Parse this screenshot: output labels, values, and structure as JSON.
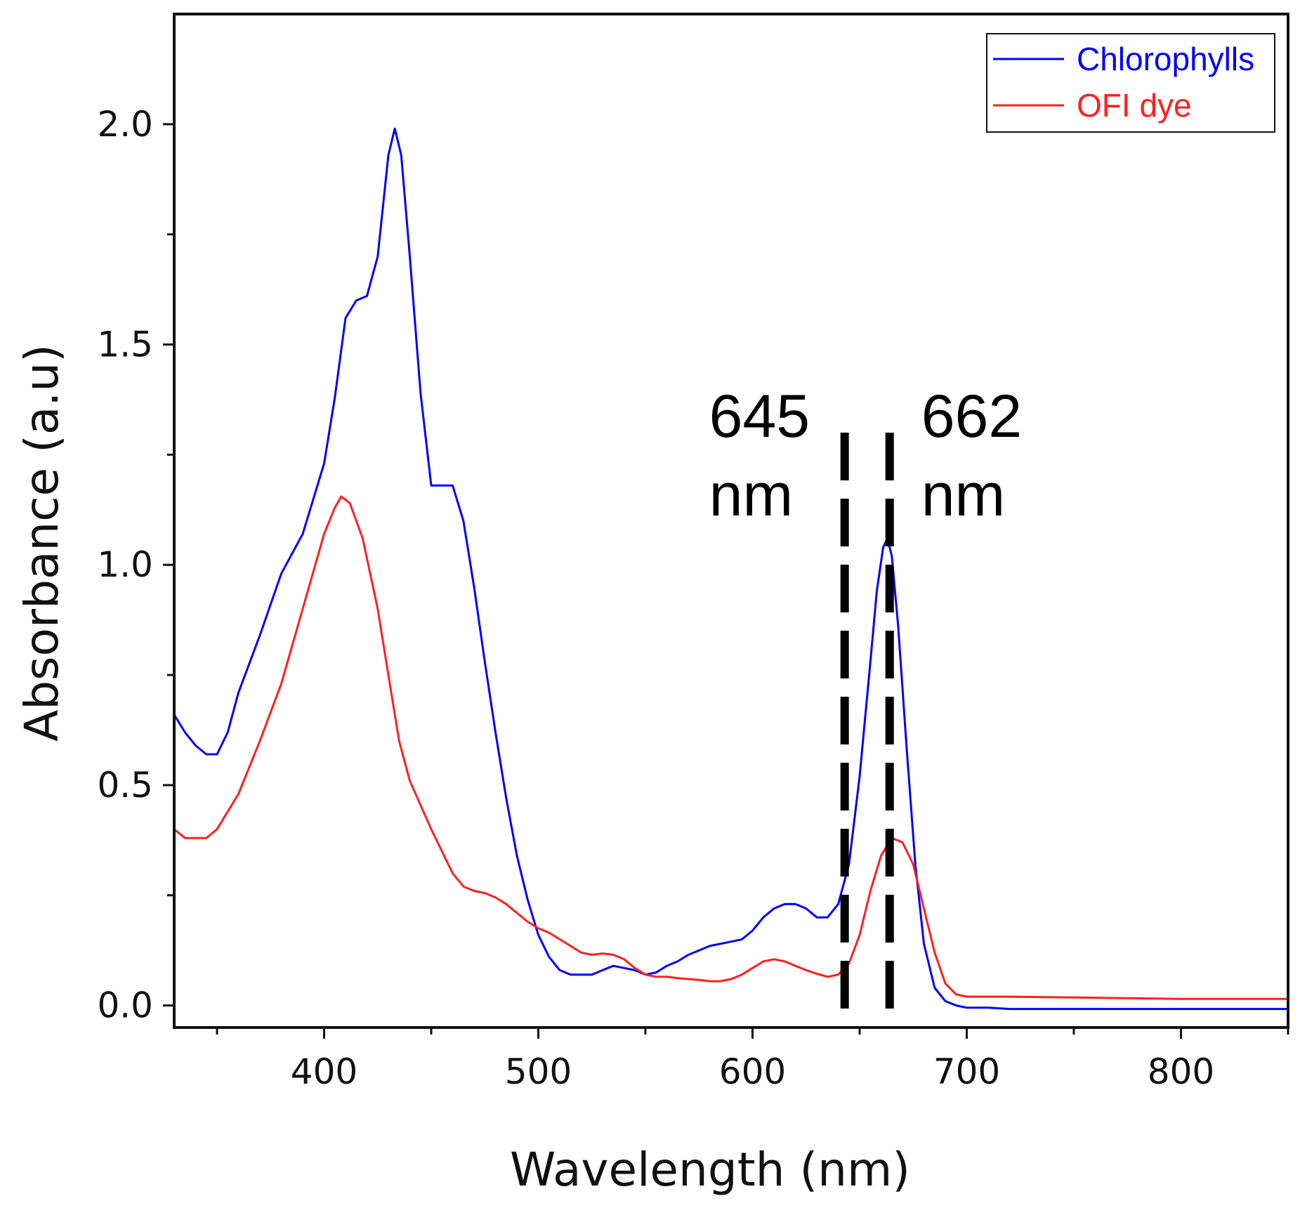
{
  "chart_data": {
    "type": "line",
    "title": "",
    "xlabel": "Wavelength (nm)",
    "ylabel": "Absorbance (a.u)",
    "xlim": [
      330,
      850
    ],
    "ylim": [
      -0.05,
      2.25
    ],
    "xticks": [
      400,
      500,
      600,
      700,
      800
    ],
    "xtick_labels": [
      "400",
      "500",
      "600",
      "700",
      "800"
    ],
    "yticks": [
      0.0,
      0.5,
      1.0,
      1.5,
      2.0
    ],
    "ytick_labels": [
      "0.0",
      "0.5",
      "1.0",
      "1.5",
      "2.0"
    ],
    "x_minor_ticks": [
      350,
      450,
      550,
      650,
      750,
      850
    ],
    "y_minor_ticks": [
      0.25,
      0.75,
      1.25,
      1.75
    ],
    "grid": false,
    "legend_position": "top-right",
    "series": [
      {
        "name": "Chlorophylls",
        "color": "#0000ff",
        "x": [
          330,
          335,
          340,
          345,
          350,
          355,
          360,
          370,
          380,
          390,
          400,
          405,
          410,
          415,
          420,
          425,
          430,
          433,
          436,
          440,
          445,
          450,
          455,
          460,
          465,
          470,
          475,
          480,
          485,
          490,
          495,
          500,
          505,
          510,
          515,
          520,
          525,
          530,
          535,
          540,
          545,
          550,
          555,
          560,
          565,
          570,
          575,
          580,
          585,
          590,
          595,
          600,
          605,
          610,
          615,
          620,
          625,
          630,
          635,
          640,
          645,
          650,
          655,
          658,
          661,
          663,
          665,
          668,
          672,
          676,
          680,
          685,
          690,
          695,
          700,
          710,
          720,
          750,
          800,
          850
        ],
        "y": [
          0.66,
          0.62,
          0.59,
          0.57,
          0.57,
          0.62,
          0.71,
          0.84,
          0.98,
          1.07,
          1.23,
          1.38,
          1.56,
          1.6,
          1.61,
          1.7,
          1.93,
          1.99,
          1.93,
          1.7,
          1.39,
          1.18,
          1.18,
          1.18,
          1.1,
          0.95,
          0.78,
          0.62,
          0.47,
          0.34,
          0.24,
          0.16,
          0.11,
          0.08,
          0.07,
          0.07,
          0.07,
          0.08,
          0.09,
          0.085,
          0.08,
          0.07,
          0.075,
          0.09,
          0.1,
          0.115,
          0.125,
          0.135,
          0.14,
          0.145,
          0.15,
          0.17,
          0.2,
          0.22,
          0.23,
          0.23,
          0.22,
          0.2,
          0.2,
          0.23,
          0.32,
          0.52,
          0.78,
          0.94,
          1.04,
          1.06,
          1.02,
          0.86,
          0.58,
          0.32,
          0.14,
          0.04,
          0.01,
          0.0,
          -0.005,
          -0.005,
          -0.008,
          -0.008,
          -0.008,
          -0.008
        ]
      },
      {
        "name": "OFI dye",
        "color": "#ff2020",
        "x": [
          330,
          335,
          340,
          345,
          350,
          360,
          370,
          380,
          390,
          400,
          405,
          408,
          412,
          418,
          425,
          430,
          435,
          440,
          450,
          460,
          465,
          470,
          475,
          480,
          485,
          490,
          495,
          500,
          505,
          510,
          515,
          520,
          525,
          530,
          535,
          540,
          545,
          550,
          555,
          560,
          565,
          570,
          575,
          580,
          585,
          590,
          595,
          600,
          605,
          610,
          615,
          620,
          625,
          630,
          635,
          640,
          645,
          650,
          655,
          660,
          665,
          670,
          675,
          680,
          685,
          690,
          695,
          700,
          710,
          720,
          750,
          800,
          850
        ],
        "y": [
          0.4,
          0.38,
          0.38,
          0.38,
          0.4,
          0.48,
          0.6,
          0.73,
          0.9,
          1.07,
          1.13,
          1.155,
          1.14,
          1.06,
          0.9,
          0.75,
          0.6,
          0.51,
          0.4,
          0.3,
          0.27,
          0.26,
          0.255,
          0.245,
          0.23,
          0.21,
          0.19,
          0.175,
          0.165,
          0.15,
          0.135,
          0.12,
          0.115,
          0.118,
          0.115,
          0.105,
          0.085,
          0.07,
          0.065,
          0.065,
          0.062,
          0.06,
          0.058,
          0.055,
          0.055,
          0.06,
          0.07,
          0.085,
          0.1,
          0.105,
          0.1,
          0.09,
          0.08,
          0.072,
          0.065,
          0.07,
          0.095,
          0.16,
          0.26,
          0.34,
          0.38,
          0.37,
          0.32,
          0.22,
          0.12,
          0.05,
          0.025,
          0.02,
          0.02,
          0.02,
          0.018,
          0.015,
          0.015
        ]
      }
    ],
    "annotations": [
      {
        "label_line1": "645",
        "label_line2": "nm",
        "x": 643,
        "y_top": 1.3,
        "y_bottom": -0.05
      },
      {
        "label_line1": "662",
        "label_line2": "nm",
        "x": 664,
        "y_top": 1.3,
        "y_bottom": -0.05
      }
    ]
  }
}
